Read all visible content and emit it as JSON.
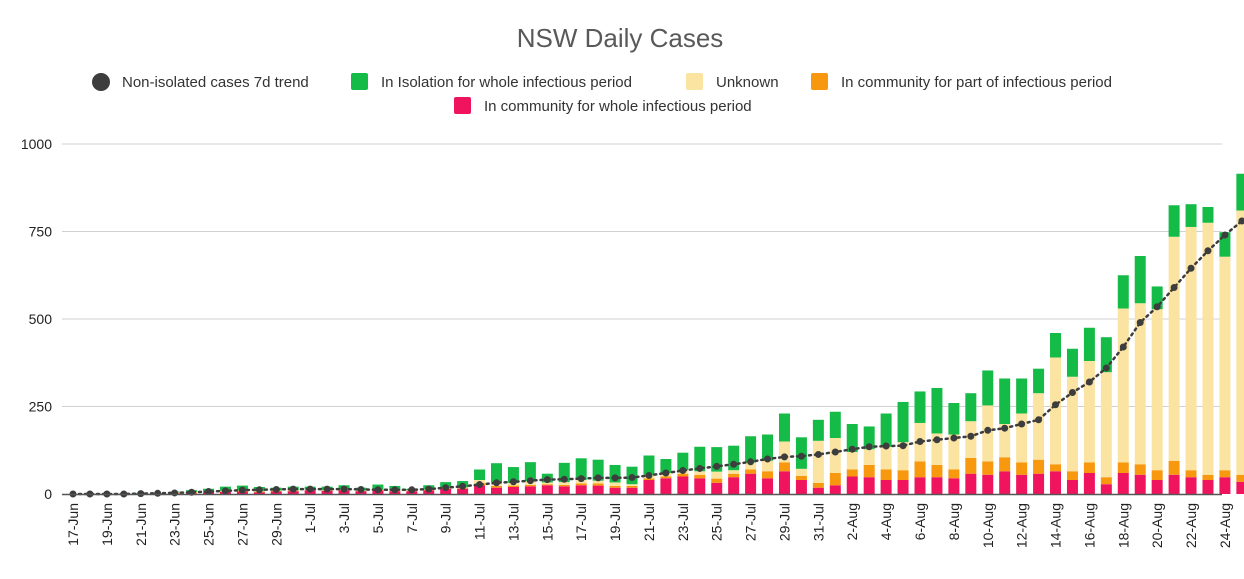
{
  "chart_data": {
    "type": "bar",
    "stacked": true,
    "title": "NSW Daily Cases",
    "xlabel": "",
    "ylabel": "",
    "ylim": [
      0,
      1000
    ],
    "yticks": [
      0,
      250,
      500,
      750,
      1000
    ],
    "grid": true,
    "legend_position": "top",
    "categories": [
      "17-Jun",
      "18-Jun",
      "19-Jun",
      "20-Jun",
      "21-Jun",
      "22-Jun",
      "23-Jun",
      "24-Jun",
      "25-Jun",
      "26-Jun",
      "27-Jun",
      "28-Jun",
      "29-Jun",
      "30-Jun",
      "1-Jul",
      "2-Jul",
      "3-Jul",
      "4-Jul",
      "5-Jul",
      "6-Jul",
      "7-Jul",
      "8-Jul",
      "9-Jul",
      "10-Jul",
      "11-Jul",
      "12-Jul",
      "13-Jul",
      "14-Jul",
      "15-Jul",
      "16-Jul",
      "17-Jul",
      "18-Jul",
      "19-Jul",
      "20-Jul",
      "21-Jul",
      "22-Jul",
      "23-Jul",
      "24-Jul",
      "25-Jul",
      "26-Jul",
      "27-Jul",
      "28-Jul",
      "29-Jul",
      "30-Jul",
      "31-Jul",
      "1-Aug",
      "2-Aug",
      "3-Aug",
      "4-Aug",
      "5-Aug",
      "6-Aug",
      "7-Aug",
      "8-Aug",
      "9-Aug",
      "10-Aug",
      "11-Aug",
      "12-Aug",
      "13-Aug",
      "14-Aug",
      "15-Aug",
      "16-Aug",
      "17-Aug",
      "18-Aug",
      "19-Aug",
      "20-Aug",
      "21-Aug",
      "22-Aug",
      "23-Aug",
      "24-Aug",
      "25-Aug"
    ],
    "tick_labels": [
      "17-Jun",
      "19-Jun",
      "21-Jun",
      "23-Jun",
      "25-Jun",
      "27-Jun",
      "29-Jun",
      "1-Jul",
      "3-Jul",
      "5-Jul",
      "7-Jul",
      "9-Jul",
      "11-Jul",
      "13-Jul",
      "15-Jul",
      "17-Jul",
      "19-Jul",
      "21-Jul",
      "23-Jul",
      "25-Jul",
      "27-Jul",
      "29-Jul",
      "31-Jul",
      "2-Aug",
      "4-Aug",
      "6-Aug",
      "8-Aug",
      "10-Aug",
      "12-Aug",
      "14-Aug",
      "16-Aug",
      "18-Aug",
      "20-Aug",
      "22-Aug",
      "24-Aug"
    ],
    "series": [
      {
        "name": "In community for whole infectious period",
        "color": "#f0145f",
        "values": [
          0,
          0,
          0,
          0,
          1,
          0,
          2,
          2,
          5,
          6,
          7,
          5,
          7,
          8,
          10,
          9,
          10,
          8,
          10,
          8,
          8,
          10,
          15,
          15,
          25,
          18,
          20,
          22,
          25,
          22,
          25,
          24,
          18,
          18,
          40,
          45,
          50,
          45,
          32,
          48,
          58,
          45,
          65,
          40,
          18,
          25,
          50,
          48,
          40,
          40,
          48,
          48,
          45,
          58,
          55,
          65,
          55,
          58,
          65,
          40,
          60,
          28,
          60,
          55,
          40,
          55,
          48,
          40,
          48,
          35
        ]
      },
      {
        "name": "In community for part of infectious period",
        "color": "#f7980e",
        "values": [
          0,
          0,
          0,
          0,
          0,
          0,
          2,
          3,
          1,
          2,
          2,
          2,
          2,
          2,
          2,
          2,
          2,
          1,
          2,
          2,
          2,
          2,
          2,
          3,
          5,
          5,
          4,
          4,
          3,
          4,
          5,
          6,
          5,
          5,
          5,
          5,
          8,
          10,
          12,
          10,
          12,
          20,
          25,
          12,
          14,
          35,
          20,
          35,
          30,
          28,
          45,
          35,
          25,
          45,
          38,
          40,
          35,
          40,
          20,
          25,
          30,
          20,
          30,
          30,
          28,
          40,
          20,
          15,
          20,
          20
        ]
      },
      {
        "name": "Unknown",
        "color": "#fbe4a2",
        "values": [
          0,
          0,
          0,
          0,
          0,
          0,
          1,
          1,
          1,
          1,
          1,
          1,
          1,
          1,
          1,
          1,
          1,
          1,
          1,
          1,
          1,
          1,
          1,
          1,
          10,
          10,
          8,
          10,
          5,
          8,
          10,
          8,
          10,
          5,
          10,
          10,
          10,
          10,
          20,
          10,
          20,
          30,
          60,
          20,
          120,
          100,
          50,
          45,
          65,
          80,
          110,
          90,
          100,
          105,
          160,
          95,
          140,
          190,
          305,
          270,
          290,
          300,
          440,
          460,
          460,
          640,
          695,
          720,
          610,
          755
        ]
      },
      {
        "name": "In Isolation for whole infectious period",
        "color": "#15bb47",
        "values": [
          0,
          1,
          0,
          1,
          2,
          2,
          2,
          5,
          8,
          12,
          14,
          12,
          8,
          10,
          8,
          9,
          12,
          8,
          14,
          12,
          4,
          12,
          16,
          18,
          30,
          55,
          45,
          55,
          25,
          55,
          62,
          60,
          50,
          50,
          55,
          40,
          50,
          70,
          70,
          70,
          75,
          75,
          80,
          90,
          60,
          75,
          80,
          65,
          95,
          115,
          90,
          130,
          90,
          80,
          100,
          130,
          100,
          70,
          70,
          80,
          95,
          100,
          95,
          135,
          65,
          90,
          65,
          45,
          70,
          105
        ]
      }
    ],
    "line_series": {
      "name": "Non-isolated cases 7d trend",
      "color": "#3d3d3d",
      "values": [
        0,
        0,
        0,
        0,
        1,
        2,
        3,
        5,
        7,
        9,
        11,
        12,
        13,
        14,
        14,
        14,
        14,
        13,
        12,
        12,
        12,
        14,
        18,
        22,
        27,
        32,
        35,
        38,
        41,
        42,
        44,
        46,
        46,
        47,
        53,
        60,
        67,
        73,
        79,
        85,
        92,
        100,
        106,
        108,
        113,
        120,
        128,
        135,
        137,
        138,
        150,
        155,
        160,
        165,
        182,
        188,
        200,
        212,
        255,
        290,
        320,
        360,
        420,
        490,
        535,
        590,
        645,
        695,
        740,
        780
      ]
    }
  }
}
